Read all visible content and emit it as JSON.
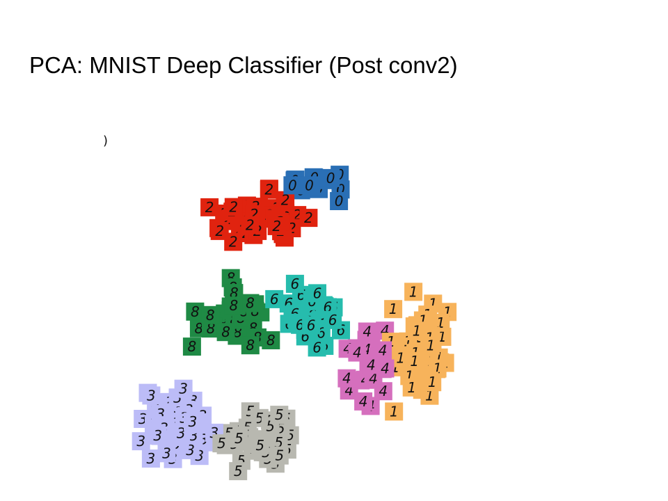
{
  "slide": {
    "title": "PCA: MNIST Deep Classifier (Post conv2)",
    "stray_mark": ")"
  },
  "chart_data": {
    "type": "scatter",
    "title": "PCA: MNIST Deep Classifier (Post conv2)",
    "xlabel": "",
    "ylabel": "",
    "xlim": [
      0,
      100
    ],
    "ylim": [
      0,
      100
    ],
    "grid": false,
    "legend": "none",
    "axes_visible": false,
    "marker": "digit-thumbnail",
    "classes": [
      {
        "digit": "0",
        "color": "#2a6fb5"
      },
      {
        "digit": "1",
        "color": "#f7b35b"
      },
      {
        "digit": "2",
        "color": "#e0230f"
      },
      {
        "digit": "3",
        "color": "#bcbcf7"
      },
      {
        "digit": "4",
        "color": "#d56fbd"
      },
      {
        "digit": "5",
        "color": "#b8b8b0"
      },
      {
        "digit": "6",
        "color": "#26bcad"
      },
      {
        "digit": "8",
        "color": "#1f8a45"
      }
    ],
    "clusters": [
      {
        "digit": "0",
        "center": [
          54,
          85
        ],
        "spread": [
          12,
          6
        ],
        "count": 14
      },
      {
        "digit": "2",
        "center": [
          37,
          76
        ],
        "spread": [
          19,
          11
        ],
        "count": 48
      },
      {
        "digit": "8",
        "center": [
          29,
          47
        ],
        "spread": [
          15,
          15
        ],
        "count": 32
      },
      {
        "digit": "6",
        "center": [
          52,
          49
        ],
        "spread": [
          14,
          12
        ],
        "count": 36
      },
      {
        "digit": "1",
        "center": [
          82,
          38
        ],
        "spread": [
          11,
          20
        ],
        "count": 46
      },
      {
        "digit": "4",
        "center": [
          67,
          36
        ],
        "spread": [
          11,
          16
        ],
        "count": 28
      },
      {
        "digit": "3",
        "center": [
          14,
          18
        ],
        "spread": [
          14,
          15
        ],
        "count": 58
      },
      {
        "digit": "5",
        "center": [
          37,
          14
        ],
        "spread": [
          15,
          12
        ],
        "count": 42
      }
    ]
  }
}
